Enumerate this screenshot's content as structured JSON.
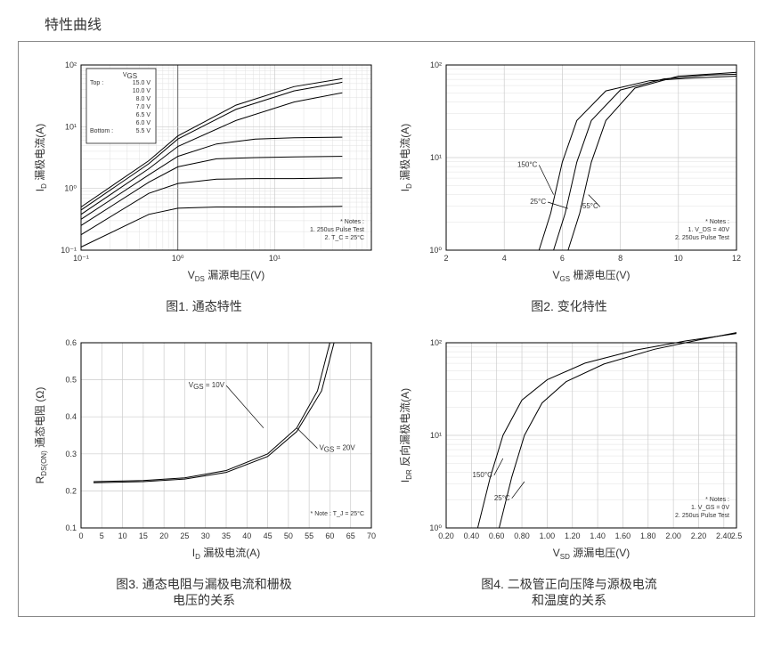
{
  "title": "特性曲线",
  "background_color": "#ffffff",
  "border_color": "#888888",
  "grid_major_color": "#cccccc",
  "grid_emph_color": "#666666",
  "grid_minor_color": "#e0e0e0",
  "curve_color": "#000000",
  "text_color": "#333333",
  "fig1": {
    "caption": "图1. 通态特性",
    "y_label_sym": "I",
    "y_label_sub": "D",
    "y_label_cn": " 漏极电流(A)",
    "x_label_sym": "V",
    "x_label_sub": "DS",
    "x_label_cn": " 漏源电压(V)",
    "x_scale": "log",
    "y_scale": "log",
    "x_exp_range": [
      -1,
      2
    ],
    "y_exp_range": [
      -1,
      2
    ],
    "x_tick_labels": [
      "10⁻¹",
      "10⁰",
      "10¹"
    ],
    "y_tick_labels": [
      "10⁻¹",
      "10⁰",
      "10¹",
      "10²"
    ],
    "emph_vline_exp": 0,
    "legend": {
      "title_sym": "V",
      "title_sub": "GS",
      "top_label": "Top :",
      "bottom_label": "Bottom :",
      "items": [
        "15.0 V",
        "10.0 V",
        "8.0 V",
        "7.0 V",
        "6.5 V",
        "6.0 V",
        "5.5 V"
      ]
    },
    "notes": [
      "* Notes :",
      "1. 250us Pulse Test",
      "2. T_C = 25°C"
    ],
    "curves": [
      {
        "pts": [
          [
            -1,
            -0.3
          ],
          [
            -0.3,
            0.45
          ],
          [
            0,
            0.85
          ],
          [
            0.6,
            1.35
          ],
          [
            1.2,
            1.65
          ],
          [
            1.7,
            1.78
          ]
        ]
      },
      {
        "pts": [
          [
            -1,
            -0.35
          ],
          [
            -0.3,
            0.4
          ],
          [
            0,
            0.8
          ],
          [
            0.6,
            1.28
          ],
          [
            1.2,
            1.58
          ],
          [
            1.7,
            1.72
          ]
        ]
      },
      {
        "pts": [
          [
            -1,
            -0.42
          ],
          [
            -0.3,
            0.32
          ],
          [
            0,
            0.68
          ],
          [
            0.6,
            1.1
          ],
          [
            1.2,
            1.4
          ],
          [
            1.7,
            1.55
          ]
        ]
      },
      {
        "pts": [
          [
            -1,
            -0.5
          ],
          [
            -0.3,
            0.22
          ],
          [
            0,
            0.52
          ],
          [
            0.4,
            0.72
          ],
          [
            0.8,
            0.8
          ],
          [
            1.2,
            0.82
          ],
          [
            1.7,
            0.83
          ]
        ]
      },
      {
        "pts": [
          [
            -1,
            -0.6
          ],
          [
            -0.3,
            0.1
          ],
          [
            0,
            0.35
          ],
          [
            0.4,
            0.48
          ],
          [
            0.8,
            0.5
          ],
          [
            1.2,
            0.51
          ],
          [
            1.7,
            0.52
          ]
        ]
      },
      {
        "pts": [
          [
            -1,
            -0.75
          ],
          [
            -0.3,
            -0.08
          ],
          [
            0,
            0.08
          ],
          [
            0.4,
            0.15
          ],
          [
            0.8,
            0.16
          ],
          [
            1.2,
            0.16
          ],
          [
            1.7,
            0.17
          ]
        ]
      },
      {
        "pts": [
          [
            -1,
            -0.95
          ],
          [
            -0.3,
            -0.42
          ],
          [
            0,
            -0.32
          ],
          [
            0.4,
            -0.3
          ],
          [
            0.8,
            -0.3
          ],
          [
            1.2,
            -0.3
          ],
          [
            1.7,
            -0.29
          ]
        ]
      }
    ]
  },
  "fig2": {
    "caption": "图2. 变化特性",
    "y_label_sym": "I",
    "y_label_sub": "D",
    "y_label_cn": " 漏极电流(A)",
    "x_label_sym": "V",
    "x_label_sub": "GS",
    "x_label_cn": " 栅源电压(V)",
    "x_scale": "linear",
    "y_scale": "log",
    "x_range": [
      2,
      12
    ],
    "x_tick_step": 2,
    "x_ticks": [
      2,
      4,
      6,
      8,
      10,
      12
    ],
    "y_exp_range": [
      0,
      2
    ],
    "y_tick_labels": [
      "10⁰",
      "10¹",
      "10²"
    ],
    "annotations": [
      {
        "label": "150°C",
        "from": [
          5.2,
          0.9
        ],
        "to": [
          5.7,
          0.6
        ]
      },
      {
        "label": "25°C",
        "from": [
          5.5,
          0.5
        ],
        "to": [
          6.2,
          0.45
        ]
      },
      {
        "label": "-55°C",
        "from": [
          7.3,
          0.45
        ],
        "to": [
          6.9,
          0.6
        ]
      }
    ],
    "notes": [
      "* Notes :",
      "1. V_DS = 40V",
      "2. 250us Pulse Test"
    ],
    "curves": [
      {
        "pts": [
          [
            5.2,
            0.0
          ],
          [
            5.6,
            0.4
          ],
          [
            6.0,
            0.95
          ],
          [
            6.5,
            1.4
          ],
          [
            7.5,
            1.72
          ],
          [
            9.0,
            1.83
          ],
          [
            10.5,
            1.86
          ],
          [
            12,
            1.88
          ]
        ]
      },
      {
        "pts": [
          [
            5.7,
            0.0
          ],
          [
            6.1,
            0.4
          ],
          [
            6.5,
            0.95
          ],
          [
            7.0,
            1.4
          ],
          [
            8.0,
            1.73
          ],
          [
            9.5,
            1.85
          ],
          [
            11,
            1.89
          ],
          [
            12,
            1.9
          ]
        ]
      },
      {
        "pts": [
          [
            6.2,
            0.0
          ],
          [
            6.6,
            0.4
          ],
          [
            7.0,
            0.95
          ],
          [
            7.5,
            1.4
          ],
          [
            8.5,
            1.75
          ],
          [
            10,
            1.88
          ],
          [
            11.5,
            1.91
          ],
          [
            12,
            1.92
          ]
        ]
      }
    ]
  },
  "fig3": {
    "caption": "图3. 通态电阻与漏极电流和栅极\\n电压的关系",
    "y_label_sym": "R",
    "y_label_sub": "DS(ON)",
    "y_label_cn": " 通态电阻 (Ω)",
    "x_label_sym": "I",
    "x_label_sub": "D",
    "x_label_cn": " 漏极电流(A)",
    "x_scale": "linear",
    "y_scale": "linear",
    "x_range": [
      0,
      70
    ],
    "x_tick_step": 5,
    "x_ticks": [
      0,
      5,
      10,
      15,
      20,
      25,
      30,
      35,
      40,
      45,
      50,
      55,
      60,
      65,
      70
    ],
    "y_range": [
      0.1,
      0.6
    ],
    "y_tick_step": 0.1,
    "y_ticks": [
      0.1,
      0.2,
      0.3,
      0.4,
      0.5,
      0.6
    ],
    "annotations": [
      {
        "label": "V_GS = 10V",
        "from": [
          35,
          0.48
        ],
        "to": [
          44,
          0.37
        ]
      },
      {
        "label": "V_GS = 20V",
        "from": [
          57,
          0.31
        ],
        "to": [
          52,
          0.37
        ]
      }
    ],
    "notes": [
      "* Note : T_J = 25°C"
    ],
    "curves": [
      {
        "pts": [
          [
            3,
            0.225
          ],
          [
            15,
            0.228
          ],
          [
            25,
            0.235
          ],
          [
            35,
            0.255
          ],
          [
            45,
            0.3
          ],
          [
            52,
            0.37
          ],
          [
            57,
            0.47
          ],
          [
            60,
            0.6
          ]
        ]
      },
      {
        "pts": [
          [
            3,
            0.222
          ],
          [
            15,
            0.225
          ],
          [
            25,
            0.232
          ],
          [
            35,
            0.25
          ],
          [
            45,
            0.293
          ],
          [
            52,
            0.36
          ],
          [
            58,
            0.47
          ],
          [
            61,
            0.6
          ]
        ]
      }
    ]
  },
  "fig4": {
    "caption": "图4. 二极管正向压降与源极电流\\n和温度的关系",
    "y_label_sym": "I",
    "y_label_sub": "DR",
    "y_label_cn": " 反向漏极电流(A)",
    "x_label_sym": "V",
    "x_label_sub": "SD",
    "x_label_cn": " 源漏电压(V)",
    "x_scale": "linear",
    "y_scale": "log",
    "x_range": [
      0.2,
      2.5
    ],
    "x_tick_step": 0.2,
    "x_ticks": [
      0.2,
      0.4,
      0.6,
      0.8,
      1.0,
      1.2,
      1.4,
      1.6,
      1.8,
      2.0,
      2.2,
      2.4
    ],
    "x_extra_tick": 2.5,
    "y_exp_range": [
      0,
      2
    ],
    "y_tick_labels": [
      "10⁰",
      "10¹",
      "10²"
    ],
    "annotations": [
      {
        "label": "150°C",
        "from": [
          0.58,
          0.55
        ],
        "to": [
          0.65,
          0.75
        ]
      },
      {
        "label": "25°C",
        "from": [
          0.72,
          0.3
        ],
        "to": [
          0.82,
          0.5
        ]
      }
    ],
    "notes": [
      "* Notes :",
      "1. V_GS = 0V",
      "2. 250us Pulse Test"
    ],
    "curves": [
      {
        "pts": [
          [
            0.45,
            0.0
          ],
          [
            0.55,
            0.55
          ],
          [
            0.65,
            1.0
          ],
          [
            0.8,
            1.38
          ],
          [
            1.0,
            1.6
          ],
          [
            1.3,
            1.78
          ],
          [
            1.7,
            1.92
          ],
          [
            2.1,
            2.02
          ],
          [
            2.5,
            2.1
          ]
        ]
      },
      {
        "pts": [
          [
            0.62,
            0.0
          ],
          [
            0.72,
            0.55
          ],
          [
            0.82,
            1.0
          ],
          [
            0.96,
            1.35
          ],
          [
            1.15,
            1.58
          ],
          [
            1.45,
            1.77
          ],
          [
            1.85,
            1.93
          ],
          [
            2.2,
            2.03
          ],
          [
            2.5,
            2.11
          ]
        ]
      }
    ]
  }
}
